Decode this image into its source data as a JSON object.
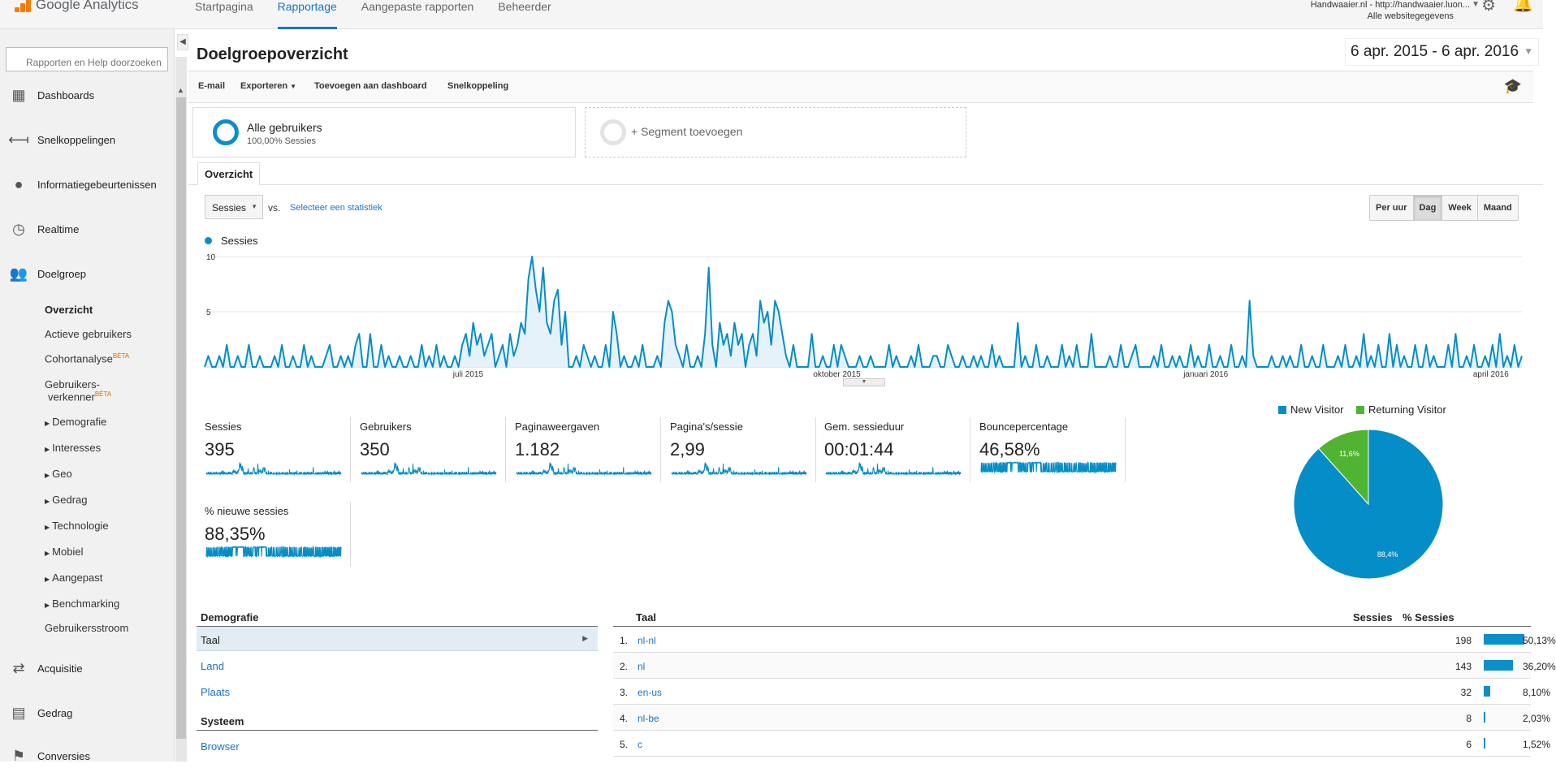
{
  "app": {
    "logo_text": "Google Analytics",
    "nav": [
      "Startpagina",
      "Rapportage",
      "Aangepaste rapporten",
      "Beheerder"
    ],
    "active_nav": "Rapportage",
    "account_name": "Handwaaier.nl - http://handwaaier.luon...",
    "account_view": "Alle websitegegevens"
  },
  "sidebar": {
    "search_placeholder": "Rapporten en Help doorzoeken",
    "items": [
      {
        "label": "Dashboards",
        "icon": "dashboards-icon"
      },
      {
        "label": "Snelkoppelingen",
        "icon": "shortcuts-icon"
      },
      {
        "label": "Informatiegebeurtenissen",
        "icon": "lightbulb-icon"
      },
      {
        "label": "Realtime",
        "icon": "clock-icon"
      },
      {
        "label": "Doelgroep",
        "icon": "people-icon"
      }
    ],
    "audience_sub": [
      "Overzicht",
      "Actieve gebruikers",
      "Cohortanalyse",
      "Gebruikers-",
      "verkenner",
      "Demografie",
      "Interesses",
      "Geo",
      "Gedrag",
      "Technologie",
      "Mobiel",
      "Aangepast",
      "Benchmarking",
      "Gebruikersstroom"
    ],
    "beta_label": "BÈTA",
    "bottom_items": [
      {
        "label": "Acquisitie",
        "icon": "acquisition-icon"
      },
      {
        "label": "Gedrag",
        "icon": "behavior-icon"
      },
      {
        "label": "Conversies",
        "icon": "flag-icon"
      }
    ]
  },
  "page": {
    "title": "Doelgroepoverzicht",
    "date_range": "6 apr. 2015 - 6 apr. 2016",
    "actions": [
      "E-mail",
      "Exporteren",
      "Toevoegen aan dashboard",
      "Snelkoppeling"
    ],
    "segment_name": "Alle gebruikers",
    "segment_sub": "100,00% Sessies",
    "segment_add": "+ Segment toevoegen",
    "tab": "Overzicht",
    "metric_select": "Sessies",
    "vs": "vs.",
    "select_stat": "Selecteer een statistiek",
    "granularity": [
      "Per uur",
      "Dag",
      "Week",
      "Maand"
    ],
    "active_granularity": "Dag"
  },
  "chart_data": [
    {
      "type": "line",
      "series_name": "Sessies",
      "ylim": [
        0,
        10
      ],
      "y_ticks": [
        "10",
        "5"
      ],
      "x_ticks": [
        "juli 2015",
        "oktober 2015",
        "januari 2016",
        "april 2016"
      ],
      "values": [
        0,
        1,
        0,
        0,
        1,
        0,
        2,
        0,
        0,
        1,
        0,
        0,
        2,
        0,
        0,
        1,
        0,
        0,
        0,
        1,
        0,
        2,
        0,
        0,
        1,
        0,
        0,
        2,
        0,
        1,
        0,
        0,
        0,
        1,
        2,
        0,
        0,
        1,
        0,
        1,
        0,
        2,
        3,
        0,
        0,
        3,
        0,
        0,
        2,
        0,
        1,
        0,
        0,
        1,
        0,
        0,
        1,
        0,
        0,
        2,
        0,
        1,
        0,
        2,
        0,
        1,
        0,
        0,
        1,
        0,
        2,
        3,
        1,
        4,
        2,
        3,
        1,
        2,
        3,
        0,
        1,
        2,
        0,
        3,
        1,
        2,
        4,
        3,
        8,
        10,
        7,
        5,
        9,
        4,
        3,
        6,
        7,
        2,
        5,
        0,
        0,
        1,
        0,
        2,
        1,
        0,
        1,
        0,
        0,
        2,
        0,
        5,
        3,
        0,
        1,
        0,
        0,
        1,
        0,
        2,
        0,
        0,
        0,
        1,
        0,
        4,
        6,
        5,
        2,
        1,
        0,
        2,
        0,
        0,
        1,
        0,
        3,
        9,
        2,
        0,
        4,
        2,
        3,
        1,
        4,
        2,
        3,
        0,
        2,
        3,
        1,
        6,
        4,
        5,
        2,
        6,
        5,
        3,
        1,
        0,
        2,
        0,
        0,
        0,
        0,
        3,
        0,
        0,
        1,
        0,
        0,
        2,
        0,
        2,
        1,
        0,
        0,
        0,
        1,
        0,
        0,
        1,
        0,
        0,
        0,
        0,
        2,
        0,
        1,
        0,
        0,
        0,
        1,
        0,
        2,
        0,
        0,
        0,
        1,
        1,
        0,
        0,
        2,
        1,
        0,
        0,
        1,
        0,
        0,
        1,
        0,
        1,
        0,
        0,
        2,
        0,
        1,
        0,
        0,
        0,
        0,
        4,
        0,
        1,
        0,
        0,
        2,
        0,
        0,
        1,
        0,
        0,
        0,
        2,
        0,
        1,
        0,
        2,
        0,
        0,
        0,
        3,
        0,
        0,
        0,
        0,
        1,
        0,
        0,
        2,
        0,
        0,
        1,
        2,
        0,
        0,
        0,
        0,
        1,
        0,
        2,
        0,
        0,
        1,
        0,
        1,
        0,
        0,
        2,
        0,
        1,
        0,
        0,
        2,
        0,
        0,
        1,
        0,
        0,
        2,
        0,
        0,
        1,
        0,
        6,
        1,
        0,
        0,
        0,
        0,
        1,
        0,
        0,
        1,
        0,
        1,
        0,
        0,
        2,
        0,
        0,
        1,
        0,
        0,
        2,
        0,
        0,
        0,
        1,
        0,
        2,
        0,
        0,
        1,
        0,
        3,
        0,
        1,
        0,
        2,
        0,
        0,
        3,
        0,
        2,
        0,
        1,
        0,
        0,
        2,
        0,
        0,
        2,
        0,
        1,
        0,
        0,
        0,
        2,
        0,
        3,
        0,
        0,
        1,
        0,
        2,
        0,
        0,
        1,
        0,
        2,
        0,
        3,
        0,
        1,
        0,
        2,
        0,
        1
      ]
    },
    {
      "type": "pie",
      "categories": [
        "New Visitor",
        "Returning Visitor"
      ],
      "values": [
        88.4,
        11.6
      ],
      "labels": [
        "88,4%",
        "11,6%"
      ],
      "colors": [
        "#058dc7",
        "#50b432"
      ]
    }
  ],
  "metrics": [
    {
      "label": "Sessies",
      "value": "395"
    },
    {
      "label": "Gebruikers",
      "value": "350"
    },
    {
      "label": "Paginaweergaven",
      "value": "1.182"
    },
    {
      "label": "Pagina's/sessie",
      "value": "2,99"
    },
    {
      "label": "Gem. sessieduur",
      "value": "00:01:44"
    },
    {
      "label": "Bouncepercentage",
      "value": "46,58%"
    },
    {
      "label": "% nieuwe sessies",
      "value": "88,35%"
    }
  ],
  "demografie": {
    "head": "Demografie",
    "rows": [
      "Taal",
      "Land",
      "Plaats"
    ],
    "head2": "Systeem",
    "rows2": [
      "Browser"
    ]
  },
  "taal_table": {
    "col_name": "Taal",
    "col_sessions": "Sessies",
    "col_pct": "% Sessies",
    "rows": [
      {
        "n": "1.",
        "name": "nl-nl",
        "sessions": "198",
        "pct": "50,13%",
        "frac": 0.5013
      },
      {
        "n": "2.",
        "name": "nl",
        "sessions": "143",
        "pct": "36,20%",
        "frac": 0.362
      },
      {
        "n": "3.",
        "name": "en-us",
        "sessions": "32",
        "pct": "8,10%",
        "frac": 0.081
      },
      {
        "n": "4.",
        "name": "nl-be",
        "sessions": "8",
        "pct": "2,03%",
        "frac": 0.0203
      },
      {
        "n": "5.",
        "name": "c",
        "sessions": "6",
        "pct": "1,52%",
        "frac": 0.0152
      }
    ]
  },
  "colors": {
    "accent": "#058dc7",
    "returning": "#50b432",
    "link": "#1a73c8",
    "beta": "#e06a00"
  }
}
